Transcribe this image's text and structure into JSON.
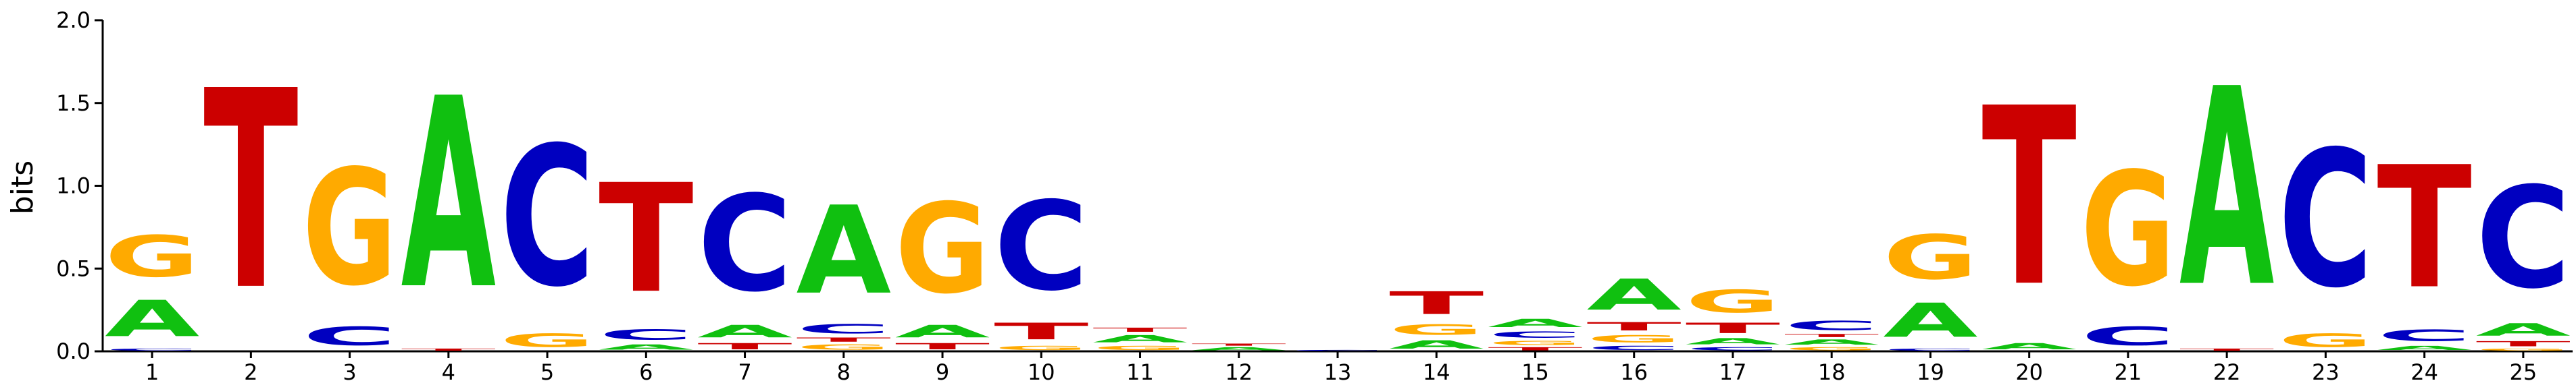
{
  "chart_data": {
    "type": "sequence-logo",
    "ylabel": "bits",
    "ylim": [
      0,
      2.0
    ],
    "yticks": [
      "0.0",
      "0.5",
      "1.0",
      "1.5",
      "2.0"
    ],
    "colors": {
      "A": "#10c010",
      "C": "#0000c0",
      "G": "#ffaa00",
      "T": "#cc0000"
    },
    "positions": [
      {
        "label": "1",
        "stack": [
          [
            "C",
            0.02
          ],
          [
            "A",
            0.35
          ],
          [
            "G",
            0.4
          ]
        ]
      },
      {
        "label": "2",
        "stack": [
          [
            "T",
            1.92
          ]
        ]
      },
      {
        "label": "3",
        "stack": [
          [
            "C",
            0.18
          ],
          [
            "G",
            1.12
          ]
        ]
      },
      {
        "label": "4",
        "stack": [
          [
            "T",
            0.02
          ],
          [
            "A",
            1.84
          ]
        ]
      },
      {
        "label": "5",
        "stack": [
          [
            "G",
            0.13
          ],
          [
            "C",
            1.35
          ]
        ]
      },
      {
        "label": "6",
        "stack": [
          [
            "A",
            0.05
          ],
          [
            "C",
            0.1
          ],
          [
            "T",
            1.05
          ]
        ]
      },
      {
        "label": "7",
        "stack": [
          [
            "T",
            0.06
          ],
          [
            "A",
            0.12
          ],
          [
            "C",
            0.93
          ]
        ]
      },
      {
        "label": "8",
        "stack": [
          [
            "G",
            0.05
          ],
          [
            "T",
            0.04
          ],
          [
            "C",
            0.09
          ],
          [
            "A",
            0.85
          ]
        ]
      },
      {
        "label": "9",
        "stack": [
          [
            "T",
            0.06
          ],
          [
            "A",
            0.12
          ],
          [
            "G",
            0.87
          ]
        ]
      },
      {
        "label": "10",
        "stack": [
          [
            "G",
            0.04
          ],
          [
            "T",
            0.16
          ],
          [
            "C",
            0.86
          ]
        ]
      },
      {
        "label": "11",
        "stack": [
          [
            "G",
            0.04
          ],
          [
            "A",
            0.07
          ],
          [
            "T",
            0.04
          ]
        ]
      },
      {
        "label": "12",
        "stack": [
          [
            "A",
            0.03
          ],
          [
            "T",
            0.02
          ]
        ]
      },
      {
        "label": "13",
        "stack": [
          [
            "C",
            0.01
          ]
        ]
      },
      {
        "label": "14",
        "stack": [
          [
            "A",
            0.08
          ],
          [
            "G",
            0.1
          ],
          [
            "T",
            0.22
          ]
        ]
      },
      {
        "label": "15",
        "stack": [
          [
            "T",
            0.03
          ],
          [
            "G",
            0.04
          ],
          [
            "C",
            0.06
          ],
          [
            "A",
            0.08
          ]
        ]
      },
      {
        "label": "16",
        "stack": [
          [
            "C",
            0.04
          ],
          [
            "G",
            0.07
          ],
          [
            "T",
            0.08
          ],
          [
            "A",
            0.3
          ]
        ]
      },
      {
        "label": "17",
        "stack": [
          [
            "C",
            0.03
          ],
          [
            "A",
            0.06
          ],
          [
            "T",
            0.1
          ],
          [
            "G",
            0.22
          ]
        ]
      },
      {
        "label": "18",
        "stack": [
          [
            "G",
            0.03
          ],
          [
            "A",
            0.05
          ],
          [
            "T",
            0.03
          ],
          [
            "C",
            0.09
          ]
        ]
      },
      {
        "label": "19",
        "stack": [
          [
            "C",
            0.02
          ],
          [
            "A",
            0.33
          ],
          [
            "G",
            0.43
          ]
        ]
      },
      {
        "label": "20",
        "stack": [
          [
            "A",
            0.06
          ],
          [
            "T",
            1.72
          ]
        ]
      },
      {
        "label": "21",
        "stack": [
          [
            "C",
            0.18
          ],
          [
            "G",
            1.1
          ]
        ]
      },
      {
        "label": "22",
        "stack": [
          [
            "T",
            0.02
          ],
          [
            "A",
            1.91
          ]
        ]
      },
      {
        "label": "23",
        "stack": [
          [
            "G",
            0.13
          ],
          [
            "C",
            1.32
          ]
        ]
      },
      {
        "label": "24",
        "stack": [
          [
            "A",
            0.04
          ],
          [
            "C",
            0.11
          ],
          [
            "T",
            1.18
          ]
        ]
      },
      {
        "label": "25",
        "stack": [
          [
            "G",
            0.02
          ],
          [
            "T",
            0.05
          ],
          [
            "A",
            0.12
          ],
          [
            "C",
            0.98
          ]
        ]
      }
    ]
  }
}
